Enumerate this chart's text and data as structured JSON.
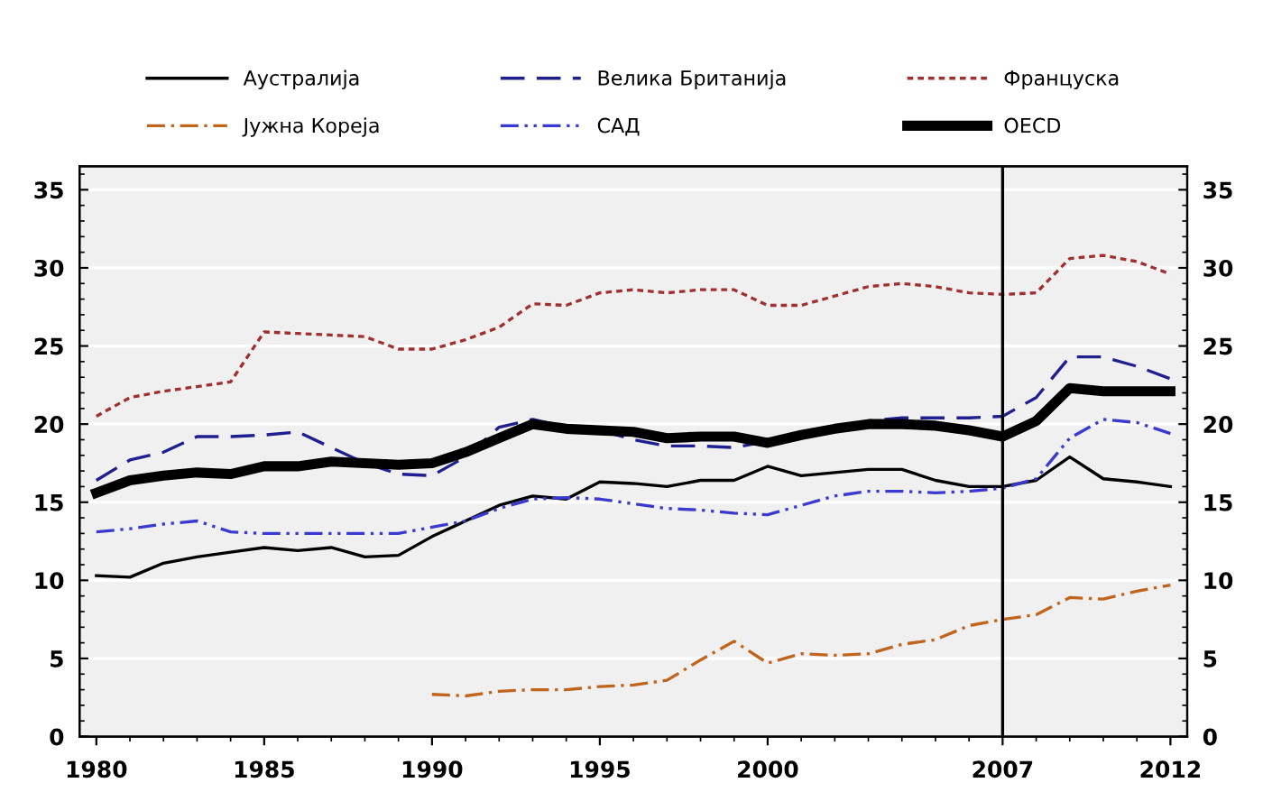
{
  "chart_data": {
    "type": "line",
    "x": [
      1980,
      1981,
      1982,
      1983,
      1984,
      1985,
      1986,
      1987,
      1988,
      1989,
      1990,
      1991,
      1992,
      1993,
      1994,
      1995,
      1996,
      1997,
      1998,
      1999,
      2000,
      2001,
      2002,
      2003,
      2004,
      2005,
      2006,
      2007,
      2008,
      2009,
      2010,
      2011,
      2012
    ],
    "series": [
      {
        "name": "Аустралија",
        "color": "#000000",
        "line_style": "solid",
        "values": [
          10.3,
          10.2,
          11.1,
          11.5,
          11.8,
          12.1,
          11.9,
          12.1,
          11.5,
          11.6,
          12.8,
          13.8,
          14.8,
          15.4,
          15.2,
          16.3,
          16.2,
          16.0,
          16.4,
          16.4,
          17.3,
          16.7,
          16.9,
          17.1,
          17.1,
          16.4,
          16.0,
          16.0,
          16.4,
          17.9,
          16.5,
          16.3,
          16.0
        ]
      },
      {
        "name": "Велика Британија",
        "color": "#1f1f8f",
        "line_style": "dashed",
        "values": [
          16.4,
          17.7,
          18.2,
          19.2,
          19.2,
          19.3,
          19.5,
          18.5,
          17.5,
          16.8,
          16.7,
          17.9,
          19.8,
          20.3,
          19.8,
          19.6,
          19.0,
          18.6,
          18.6,
          18.5,
          18.9,
          19.5,
          19.7,
          20.2,
          20.4,
          20.4,
          20.4,
          20.5,
          21.7,
          24.3,
          24.3,
          23.7,
          22.9
        ]
      },
      {
        "name": "Француска",
        "color": "#a03030",
        "line_style": "dotted",
        "values": [
          20.5,
          21.7,
          22.1,
          22.4,
          22.7,
          25.9,
          25.8,
          25.7,
          25.6,
          24.8,
          24.8,
          25.4,
          26.2,
          27.7,
          27.6,
          28.4,
          28.6,
          28.4,
          28.6,
          28.6,
          27.6,
          27.6,
          28.2,
          28.8,
          29.0,
          28.8,
          28.4,
          28.3,
          28.4,
          30.6,
          30.8,
          30.4,
          29.6
        ]
      },
      {
        "name": "Јужна Кореја",
        "color": "#c0641e",
        "line_style": "dashdot",
        "values": [
          null,
          null,
          null,
          null,
          null,
          null,
          null,
          null,
          null,
          null,
          2.7,
          2.6,
          2.9,
          3.0,
          3.0,
          3.2,
          3.3,
          3.6,
          4.9,
          6.1,
          4.7,
          5.3,
          5.2,
          5.3,
          5.9,
          6.2,
          7.1,
          7.5,
          7.8,
          8.9,
          8.8,
          9.3,
          9.7
        ]
      },
      {
        "name": "САД",
        "color": "#3a3ad0",
        "line_style": "dashdotdot",
        "values": [
          13.1,
          13.3,
          13.6,
          13.8,
          13.1,
          13.0,
          13.0,
          13.0,
          13.0,
          13.0,
          13.4,
          13.8,
          14.6,
          15.2,
          15.3,
          15.2,
          14.9,
          14.6,
          14.5,
          14.3,
          14.2,
          14.8,
          15.4,
          15.7,
          15.7,
          15.6,
          15.7,
          15.9,
          16.5,
          19.1,
          20.3,
          20.1,
          19.4
        ]
      },
      {
        "name": "OECD",
        "color": "#000000",
        "line_style": "solid",
        "values": [
          15.6,
          16.4,
          16.7,
          16.9,
          16.8,
          17.3,
          17.3,
          17.6,
          17.5,
          17.4,
          17.5,
          18.2,
          19.1,
          20.0,
          19.7,
          19.6,
          19.5,
          19.1,
          19.2,
          19.2,
          18.8,
          19.3,
          19.7,
          20.0,
          20.0,
          19.9,
          19.6,
          19.2,
          20.2,
          22.3,
          22.1,
          22.1,
          22.1
        ]
      }
    ],
    "xlim": [
      1979.5,
      2012.5
    ],
    "xticks": [
      1980,
      1985,
      1990,
      1995,
      2000,
      2007,
      2012
    ],
    "ylim": [
      0,
      36.5
    ],
    "yticks": [
      0,
      5,
      10,
      15,
      20,
      25,
      30,
      35
    ],
    "y2lim": [
      0,
      36.5
    ],
    "y2ticks": [
      0,
      5,
      10,
      15,
      20,
      25,
      30,
      35
    ],
    "ref_lines": [
      {
        "axis": "x",
        "value": 2007,
        "color": "#000000"
      }
    ],
    "grid": "y",
    "legend": "top"
  }
}
